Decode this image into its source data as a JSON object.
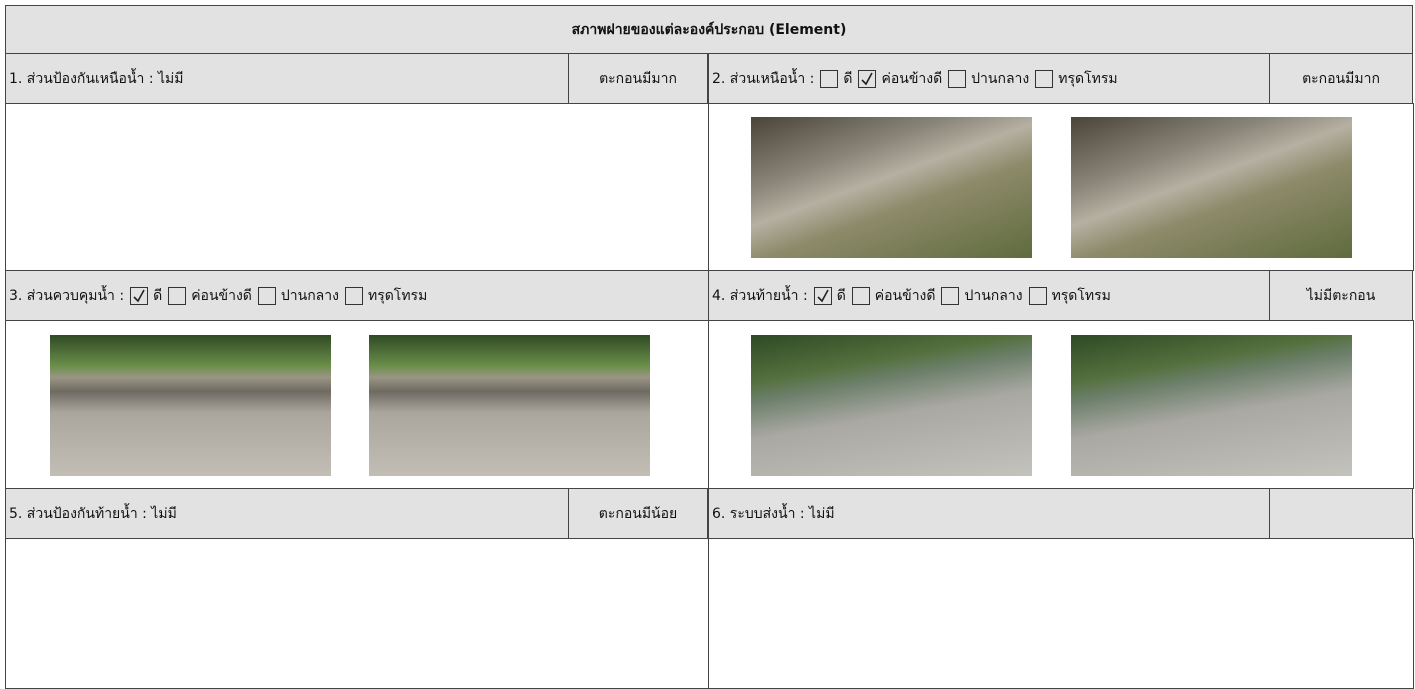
{
  "title": "สภาพฝายของแต่ละองค์ประกอบ (Element)",
  "sections": [
    {
      "label": "1. ส่วนป้องกันเหนือน้ำ : ไม่มี",
      "status": "ตะกอนมีมาก"
    },
    {
      "label": "2. ส่วนเหนือน้ำ :",
      "options": [
        {
          "label": "ดี",
          "checked": false
        },
        {
          "label": "ค่อนข้างดี",
          "checked": true
        },
        {
          "label": "ปานกลาง",
          "checked": false
        },
        {
          "label": "ทรุดโทรม",
          "checked": false
        }
      ],
      "status": "ตะกอนมีมาก"
    },
    {
      "label": "3. ส่วนควบคุมน้ำ :",
      "options": [
        {
          "label": "ดี",
          "checked": true
        },
        {
          "label": "ค่อนข้างดี",
          "checked": false
        },
        {
          "label": "ปานกลาง",
          "checked": false
        },
        {
          "label": "ทรุดโทรม",
          "checked": false
        }
      ]
    },
    {
      "label": "4. ส่วนท้ายน้ำ :",
      "options": [
        {
          "label": "ดี",
          "checked": true
        },
        {
          "label": "ค่อนข้างดี",
          "checked": false
        },
        {
          "label": "ปานกลาง",
          "checked": false
        },
        {
          "label": "ทรุดโทรม",
          "checked": false
        }
      ],
      "status": "ไม่มีตะกอน"
    },
    {
      "label": "5. ส่วนป้องกันท้ายน้ำ : ไม่มี",
      "status": "ตะกอนมีน้อย"
    },
    {
      "label": "6. ระบบส่งน้ำ : ไม่มี"
    }
  ]
}
